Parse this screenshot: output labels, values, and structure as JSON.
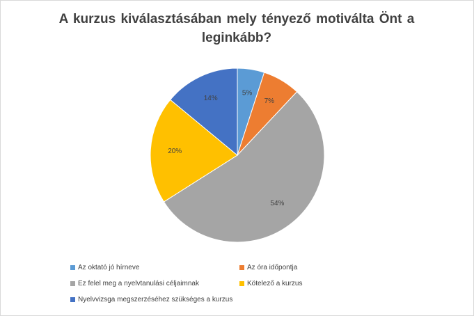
{
  "chart_data": {
    "type": "pie",
    "title": "A kurzus  kiválasztásában  mely tényező motiválta  Önt a leginkább?",
    "categories": [
      "Az oktató jó hírneve",
      "Az óra időpontja",
      "Ez felel meg a nyelvtanulási céljaimnak",
      "Kötelező a kurzus",
      "Nyelvvizsga megszerzéséhez szükséges a kurzus"
    ],
    "values": [
      5,
      7,
      54,
      20,
      14
    ],
    "data_labels": [
      "5%",
      "7%",
      "54%",
      "20%",
      "14%"
    ],
    "colors": [
      "#5b9bd5",
      "#ed7d31",
      "#a5a5a5",
      "#ffc000",
      "#4472c4"
    ],
    "legend_position": "bottom"
  }
}
